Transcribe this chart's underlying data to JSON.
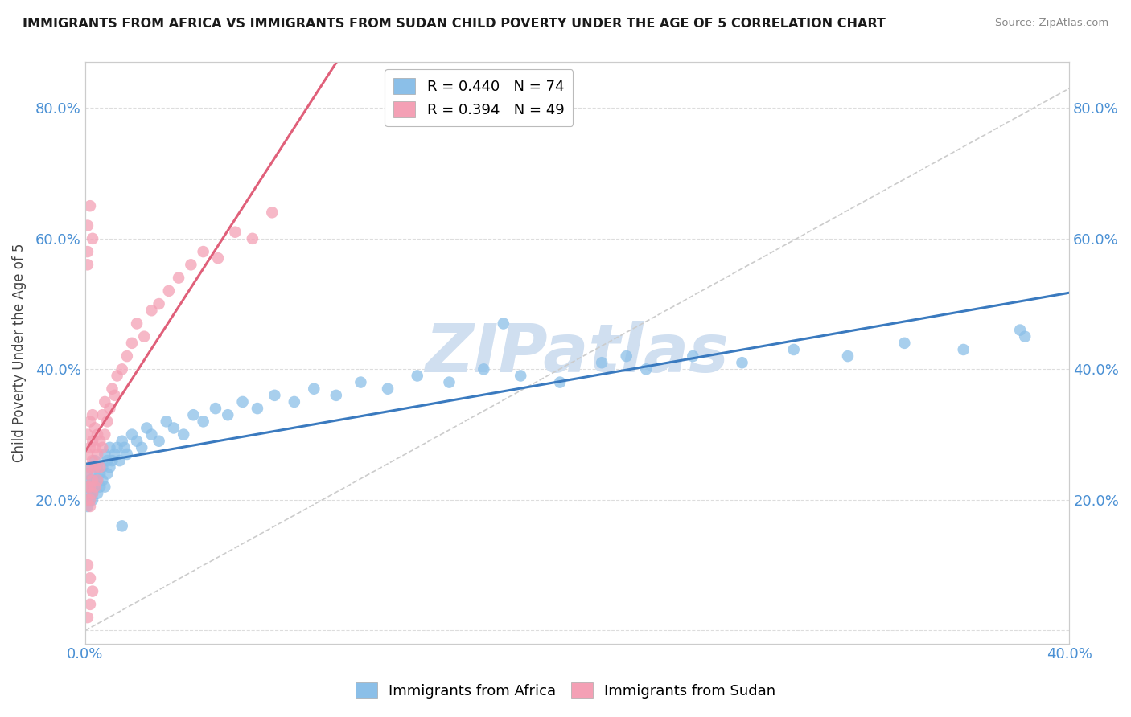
{
  "title": "IMMIGRANTS FROM AFRICA VS IMMIGRANTS FROM SUDAN CHILD POVERTY UNDER THE AGE OF 5 CORRELATION CHART",
  "source": "Source: ZipAtlas.com",
  "ylabel": "Child Poverty Under the Age of 5",
  "xlim": [
    0.0,
    0.4
  ],
  "ylim": [
    -0.02,
    0.87
  ],
  "y_ticks": [
    0.0,
    0.2,
    0.4,
    0.6,
    0.8
  ],
  "y_tick_labels_left": [
    "",
    "20.0%",
    "40.0%",
    "60.0%",
    "80.0%"
  ],
  "y_tick_labels_right": [
    "",
    "20.0%",
    "40.0%",
    "60.0%",
    "80.0%"
  ],
  "x_tick_positions": [
    0.0,
    0.05,
    0.1,
    0.15,
    0.2,
    0.25,
    0.3,
    0.35,
    0.4
  ],
  "x_tick_labels": [
    "0.0%",
    "",
    "",
    "",
    "",
    "",
    "",
    "",
    "40.0%"
  ],
  "legend_africa": "R = 0.440   N = 74",
  "legend_sudan": "R = 0.394   N = 49",
  "color_africa": "#8bbfe8",
  "color_sudan": "#f4a0b5",
  "trendline_africa": "#3a7abf",
  "trendline_sudan": "#e0607a",
  "watermark_color": "#d0dff0",
  "watermark_text": "ZIPatlas",
  "ref_line_color": "#cccccc",
  "grid_color": "#dddddd",
  "africa_x": [
    0.001,
    0.001,
    0.001,
    0.001,
    0.002,
    0.002,
    0.002,
    0.002,
    0.003,
    0.003,
    0.003,
    0.003,
    0.004,
    0.004,
    0.004,
    0.005,
    0.005,
    0.005,
    0.006,
    0.006,
    0.007,
    0.007,
    0.008,
    0.008,
    0.009,
    0.009,
    0.01,
    0.01,
    0.011,
    0.012,
    0.013,
    0.014,
    0.015,
    0.016,
    0.017,
    0.019,
    0.021,
    0.023,
    0.025,
    0.027,
    0.03,
    0.033,
    0.036,
    0.04,
    0.044,
    0.048,
    0.053,
    0.058,
    0.064,
    0.07,
    0.077,
    0.085,
    0.093,
    0.102,
    0.112,
    0.123,
    0.135,
    0.148,
    0.162,
    0.177,
    0.193,
    0.21,
    0.228,
    0.247,
    0.267,
    0.288,
    0.31,
    0.333,
    0.357,
    0.382,
    0.17,
    0.22,
    0.38,
    0.015
  ],
  "africa_y": [
    0.2,
    0.22,
    0.24,
    0.19,
    0.2,
    0.23,
    0.21,
    0.25,
    0.22,
    0.2,
    0.23,
    0.21,
    0.24,
    0.22,
    0.26,
    0.21,
    0.23,
    0.25,
    0.22,
    0.24,
    0.23,
    0.25,
    0.22,
    0.27,
    0.24,
    0.26,
    0.25,
    0.28,
    0.26,
    0.27,
    0.28,
    0.26,
    0.29,
    0.28,
    0.27,
    0.3,
    0.29,
    0.28,
    0.31,
    0.3,
    0.29,
    0.32,
    0.31,
    0.3,
    0.33,
    0.32,
    0.34,
    0.33,
    0.35,
    0.34,
    0.36,
    0.35,
    0.37,
    0.36,
    0.38,
    0.37,
    0.39,
    0.38,
    0.4,
    0.39,
    0.38,
    0.41,
    0.4,
    0.42,
    0.41,
    0.43,
    0.42,
    0.44,
    0.43,
    0.45,
    0.47,
    0.42,
    0.46,
    0.16
  ],
  "sudan_x": [
    0.001,
    0.001,
    0.001,
    0.001,
    0.001,
    0.002,
    0.002,
    0.002,
    0.002,
    0.002,
    0.002,
    0.003,
    0.003,
    0.003,
    0.003,
    0.003,
    0.004,
    0.004,
    0.004,
    0.004,
    0.005,
    0.005,
    0.005,
    0.006,
    0.006,
    0.007,
    0.007,
    0.008,
    0.008,
    0.009,
    0.01,
    0.011,
    0.012,
    0.013,
    0.015,
    0.017,
    0.019,
    0.021,
    0.024,
    0.027,
    0.03,
    0.034,
    0.038,
    0.043,
    0.048,
    0.054,
    0.061,
    0.068,
    0.076
  ],
  "sudan_y": [
    0.2,
    0.22,
    0.24,
    0.27,
    0.3,
    0.2,
    0.22,
    0.25,
    0.28,
    0.32,
    0.19,
    0.21,
    0.23,
    0.26,
    0.29,
    0.33,
    0.22,
    0.25,
    0.28,
    0.31,
    0.23,
    0.27,
    0.3,
    0.25,
    0.29,
    0.28,
    0.33,
    0.3,
    0.35,
    0.32,
    0.34,
    0.37,
    0.36,
    0.39,
    0.4,
    0.42,
    0.44,
    0.47,
    0.45,
    0.49,
    0.5,
    0.52,
    0.54,
    0.56,
    0.58,
    0.57,
    0.61,
    0.6,
    0.64
  ],
  "sudan_outliers_x": [
    0.001,
    0.001,
    0.001,
    0.002,
    0.003,
    0.001,
    0.002,
    0.003,
    0.002,
    0.001
  ],
  "sudan_outliers_y": [
    0.56,
    0.62,
    0.58,
    0.65,
    0.6,
    0.02,
    0.04,
    0.06,
    0.08,
    0.1
  ]
}
